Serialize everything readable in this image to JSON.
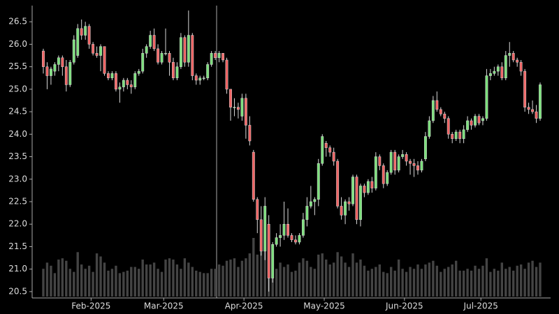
{
  "chart_data": {
    "type": "candlestick",
    "categories": [
      null,
      null,
      null,
      null,
      null,
      null,
      null,
      null,
      null,
      null,
      null,
      null,
      null,
      null,
      null,
      null,
      null,
      null,
      null,
      null,
      null,
      null,
      null,
      null,
      null,
      null,
      null,
      null,
      null,
      null,
      null,
      null,
      null,
      null,
      null,
      null,
      null,
      null,
      null,
      null,
      null,
      null,
      null,
      null,
      null,
      null,
      null,
      null,
      null,
      null,
      null,
      null,
      null,
      null,
      null,
      null,
      null,
      null,
      null,
      null,
      null,
      null,
      null,
      null,
      null,
      null,
      null,
      null,
      null,
      null,
      null,
      null,
      null,
      null,
      null,
      null,
      null,
      null,
      null,
      null,
      null,
      null,
      null,
      null,
      null,
      null,
      null,
      null,
      null,
      null,
      null,
      null,
      null,
      null,
      null,
      null,
      null,
      null,
      null,
      null,
      null,
      null,
      null,
      null,
      null,
      null,
      null,
      null,
      null,
      null,
      null,
      null,
      null,
      null,
      null,
      null,
      null,
      null,
      null,
      null,
      null,
      null,
      null,
      null,
      null,
      null,
      null,
      null,
      null,
      null,
      null
    ],
    "open": [
      25.85,
      25.5,
      25.3,
      25.4,
      25.55,
      25.7,
      25.5,
      25.1,
      25.6,
      25.75,
      26.35,
      26.2,
      26.4,
      26.0,
      25.8,
      25.75,
      25.95,
      25.35,
      25.25,
      25.35,
      25.0,
      25.05,
      25.2,
      25.1,
      25.05,
      25.35,
      25.4,
      25.8,
      25.95,
      26.2,
      25.9,
      25.6,
      25.8,
      25.8,
      25.6,
      25.25,
      25.5,
      26.15,
      25.6,
      26.2,
      25.3,
      25.2,
      25.25,
      25.25,
      25.55,
      25.8,
      25.7,
      25.8,
      25.65,
      25.0,
      24.6,
      24.6,
      24.4,
      24.8,
      24.2,
      23.6,
      22.55,
      22.1,
      21.4,
      22.0,
      20.8,
      21.55,
      21.7,
      21.75,
      22.0,
      21.75,
      21.65,
      21.6,
      21.75,
      22.1,
      22.4,
      22.5,
      22.55,
      23.35,
      23.8,
      23.7,
      23.6,
      23.4,
      22.4,
      22.2,
      22.5,
      22.45,
      23.05,
      22.1,
      22.85,
      22.7,
      22.95,
      22.8,
      23.5,
      23.3,
      22.9,
      23.15,
      23.6,
      23.2,
      23.5,
      23.55,
      23.4,
      23.35,
      23.3,
      23.2,
      23.45,
      23.95,
      24.3,
      24.75,
      24.55,
      24.45,
      24.35,
      24.0,
      23.9,
      24.05,
      23.9,
      24.1,
      24.3,
      24.2,
      24.4,
      24.3,
      24.35,
      25.3,
      25.35,
      25.4,
      25.5,
      25.25,
      25.75,
      25.8,
      25.65,
      25.6,
      25.4,
      24.6,
      24.55,
      24.5,
      24.35
    ],
    "high": [
      25.9,
      25.6,
      25.5,
      25.6,
      25.75,
      25.75,
      25.65,
      25.65,
      26.2,
      26.45,
      26.55,
      26.5,
      26.45,
      26.05,
      25.95,
      26.0,
      25.95,
      25.4,
      25.4,
      25.4,
      25.15,
      25.25,
      25.25,
      25.2,
      25.4,
      25.45,
      25.9,
      26.0,
      26.3,
      26.35,
      26.0,
      25.85,
      26.35,
      25.85,
      25.7,
      25.6,
      26.25,
      26.2,
      26.75,
      26.25,
      25.35,
      25.3,
      25.3,
      25.6,
      25.85,
      25.85,
      25.85,
      25.8,
      25.7,
      25.0,
      24.8,
      24.7,
      24.9,
      24.9,
      24.4,
      23.65,
      22.6,
      22.4,
      22.6,
      22.2,
      21.6,
      21.8,
      22.0,
      22.5,
      22.35,
      21.8,
      21.75,
      21.8,
      22.25,
      22.6,
      22.85,
      22.6,
      23.45,
      24.0,
      23.85,
      23.75,
      23.7,
      23.45,
      22.6,
      22.55,
      22.6,
      23.1,
      23.1,
      22.9,
      22.9,
      23.0,
      23.05,
      23.6,
      23.55,
      23.35,
      23.2,
      23.65,
      23.65,
      23.55,
      23.65,
      23.6,
      23.45,
      23.45,
      23.4,
      23.45,
      24.05,
      24.4,
      24.85,
      24.95,
      24.6,
      24.5,
      24.4,
      24.05,
      24.1,
      24.1,
      24.2,
      24.4,
      24.35,
      24.45,
      24.45,
      24.4,
      25.45,
      25.45,
      25.5,
      25.55,
      25.6,
      25.85,
      26.05,
      25.85,
      25.7,
      25.65,
      25.45,
      24.7,
      24.75,
      24.65,
      25.15
    ],
    "low": [
      25.35,
      25.0,
      25.1,
      25.3,
      25.4,
      25.3,
      24.95,
      25.05,
      25.55,
      25.7,
      26.1,
      26.1,
      25.9,
      25.75,
      25.7,
      25.4,
      25.3,
      25.2,
      25.2,
      24.95,
      24.7,
      24.95,
      25.0,
      24.9,
      25.0,
      25.3,
      25.35,
      25.7,
      25.9,
      25.85,
      25.55,
      25.55,
      25.75,
      25.3,
      25.2,
      25.2,
      25.45,
      25.5,
      25.5,
      25.2,
      25.1,
      25.1,
      25.2,
      25.2,
      25.5,
      25.65,
      25.6,
      25.6,
      24.9,
      24.3,
      24.4,
      24.35,
      24.3,
      23.9,
      23.75,
      22.5,
      21.8,
      21.3,
      21.2,
      20.5,
      20.7,
      21.5,
      21.5,
      21.65,
      21.7,
      21.6,
      21.55,
      21.55,
      21.7,
      21.95,
      22.35,
      22.2,
      22.4,
      23.3,
      23.5,
      23.5,
      23.3,
      22.35,
      22.1,
      22.0,
      22.3,
      22.4,
      22.0,
      21.95,
      22.6,
      22.65,
      22.7,
      22.75,
      23.2,
      22.8,
      22.85,
      23.1,
      23.1,
      23.15,
      23.45,
      23.3,
      23.1,
      23.05,
      23.1,
      23.15,
      23.4,
      23.9,
      24.25,
      24.5,
      24.4,
      24.25,
      23.9,
      23.8,
      23.85,
      23.8,
      23.8,
      24.05,
      24.1,
      24.15,
      24.2,
      24.2,
      24.3,
      25.2,
      25.3,
      25.3,
      25.2,
      25.2,
      25.5,
      25.6,
      25.5,
      25.3,
      24.5,
      24.45,
      24.45,
      24.25,
      24.3
    ],
    "close": [
      25.5,
      25.3,
      25.45,
      25.55,
      25.7,
      25.5,
      25.1,
      25.6,
      26.1,
      26.35,
      26.2,
      26.4,
      26.0,
      25.8,
      25.75,
      25.95,
      25.35,
      25.25,
      25.35,
      25.0,
      25.05,
      25.2,
      25.1,
      25.05,
      25.35,
      25.4,
      25.8,
      25.95,
      26.2,
      25.9,
      25.6,
      25.8,
      25.8,
      25.6,
      25.25,
      25.5,
      26.15,
      25.6,
      26.2,
      25.3,
      25.2,
      25.25,
      25.25,
      25.55,
      25.8,
      25.7,
      25.8,
      25.65,
      25.0,
      24.6,
      24.6,
      24.55,
      24.8,
      24.2,
      23.85,
      22.55,
      22.1,
      21.4,
      22.4,
      20.8,
      21.55,
      21.7,
      21.75,
      22.0,
      21.75,
      21.65,
      21.6,
      21.75,
      22.1,
      22.4,
      22.5,
      22.55,
      23.35,
      23.95,
      23.7,
      23.6,
      23.4,
      22.4,
      22.2,
      22.5,
      22.45,
      23.05,
      22.1,
      22.85,
      22.7,
      22.95,
      22.8,
      23.5,
      23.3,
      22.9,
      23.15,
      23.6,
      23.2,
      23.5,
      23.55,
      23.4,
      23.35,
      23.3,
      23.2,
      23.4,
      23.95,
      24.3,
      24.75,
      24.55,
      24.45,
      24.35,
      24.0,
      23.9,
      24.05,
      23.9,
      24.1,
      24.3,
      24.2,
      24.4,
      24.25,
      24.35,
      25.3,
      25.35,
      25.4,
      25.5,
      25.25,
      25.75,
      25.8,
      25.65,
      25.6,
      25.4,
      24.6,
      24.55,
      24.5,
      24.35,
      25.1
    ],
    "volume": [
      45,
      55,
      50,
      38,
      60,
      62,
      58,
      45,
      40,
      72,
      52,
      45,
      50,
      40,
      70,
      65,
      55,
      42,
      45,
      50,
      38,
      40,
      42,
      48,
      48,
      45,
      60,
      52,
      52,
      55,
      45,
      40,
      60,
      62,
      60,
      52,
      45,
      62,
      55,
      48,
      42,
      40,
      38,
      38,
      45,
      45,
      52,
      50,
      58,
      60,
      62,
      48,
      58,
      62,
      70,
      95,
      68,
      75,
      80,
      70,
      68,
      45,
      55,
      48,
      52,
      40,
      42,
      55,
      62,
      58,
      48,
      45,
      68,
      70,
      60,
      52,
      55,
      72,
      65,
      55,
      48,
      70,
      55,
      60,
      50,
      42,
      45,
      48,
      52,
      40,
      38,
      48,
      42,
      60,
      45,
      40,
      48,
      45,
      52,
      45,
      52,
      55,
      58,
      50,
      40,
      45,
      48,
      52,
      58,
      42,
      42,
      45,
      42,
      50,
      45,
      50,
      62,
      40,
      45,
      42,
      55,
      45,
      48,
      42,
      50,
      52,
      45,
      55,
      58,
      48,
      55
    ],
    "up_color": "#7be07b",
    "down_color": "#f06262",
    "wick_color": "#d8d8d8",
    "volume_color": "#444444",
    "ylim": [
      20.39,
      26.86
    ],
    "yticks": [
      20.5,
      {
        "value": 21,
        "label": "21.0"
      },
      21.5,
      {
        "value": 22,
        "label": "22.0"
      },
      22.5,
      {
        "value": 23,
        "label": "23.0"
      },
      23.5,
      {
        "value": 24,
        "label": "24.0"
      },
      24.5,
      {
        "value": 25,
        "label": "25.0"
      },
      25.5,
      {
        "value": 26,
        "label": "26.0"
      },
      26.5
    ],
    "xticks": [
      {
        "value": 12.5,
        "label": "Feb-2025"
      },
      {
        "value": 31.5,
        "label": "Mar-2025"
      },
      {
        "value": 52.5,
        "label": "Apr-2025"
      },
      {
        "value": 73.5,
        "label": "May-2025"
      },
      {
        "value": 94.5,
        "label": "Jun-2025"
      },
      {
        "value": 114.5,
        "label": "Jul-2025"
      }
    ],
    "grid": false
  }
}
